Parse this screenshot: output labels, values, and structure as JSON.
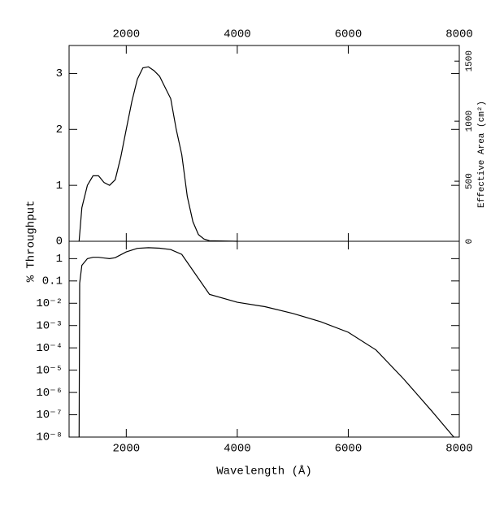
{
  "chart_data": [
    {
      "type": "line",
      "ylabel": "% Throughput",
      "y2label": "Effective Area (cm²)",
      "x": [
        1150,
        1200,
        1300,
        1400,
        1500,
        1600,
        1700,
        1800,
        1900,
        2000,
        2100,
        2200,
        2300,
        2400,
        2500,
        2600,
        2700,
        2800,
        2900,
        3000,
        3100,
        3200,
        3300,
        3400,
        3500,
        4000
      ],
      "values": [
        0,
        0.6,
        1.0,
        1.17,
        1.17,
        1.05,
        1.0,
        1.1,
        1.5,
        2.0,
        2.5,
        2.9,
        3.1,
        3.12,
        3.05,
        2.95,
        2.75,
        2.55,
        2.0,
        1.55,
        0.8,
        0.35,
        0.12,
        0.04,
        0.01,
        0
      ],
      "color": "#000000",
      "xlim": [
        970,
        8000
      ],
      "xticks": [
        2000,
        4000,
        6000,
        8000
      ],
      "ylim": [
        0,
        3.5
      ],
      "yticks": [
        0,
        1,
        2,
        3
      ],
      "y2lim": [
        0,
        1630
      ],
      "y2ticks": [
        0,
        500,
        1000,
        1500
      ]
    },
    {
      "type": "line",
      "log_y": true,
      "xlabel": "Wavelength (Å)",
      "x": [
        1150,
        1160,
        1200,
        1300,
        1400,
        1500,
        1700,
        1800,
        2000,
        2200,
        2400,
        2600,
        2800,
        3000,
        3500,
        4000,
        4500,
        5000,
        5500,
        6000,
        6500,
        7000,
        7500,
        7900
      ],
      "values": [
        1e-08,
        0.08,
        0.5,
        1.0,
        1.15,
        1.15,
        1.0,
        1.1,
        2.0,
        2.9,
        3.1,
        2.95,
        2.55,
        1.55,
        0.025,
        0.011,
        0.007,
        0.0035,
        0.0015,
        0.0005,
        8e-05,
        4e-06,
        1.5e-07,
        1e-08
      ],
      "color": "#000000",
      "xlim": [
        970,
        8000
      ],
      "xticks": [
        2000,
        4000,
        6000,
        8000
      ],
      "ylim": [
        1e-08,
        6
      ],
      "yticks": [
        {
          "value": 1e-08,
          "label": "10⁻⁸"
        },
        {
          "value": 1e-07,
          "label": "10⁻⁷"
        },
        {
          "value": 1e-06,
          "label": "10⁻⁶"
        },
        {
          "value": 1e-05,
          "label": "10⁻⁵"
        },
        {
          "value": 0.0001,
          "label": "10⁻⁴"
        },
        {
          "value": 0.001,
          "label": "10⁻³"
        },
        {
          "value": 0.01,
          "label": "10⁻²"
        },
        0.1,
        1
      ]
    }
  ]
}
